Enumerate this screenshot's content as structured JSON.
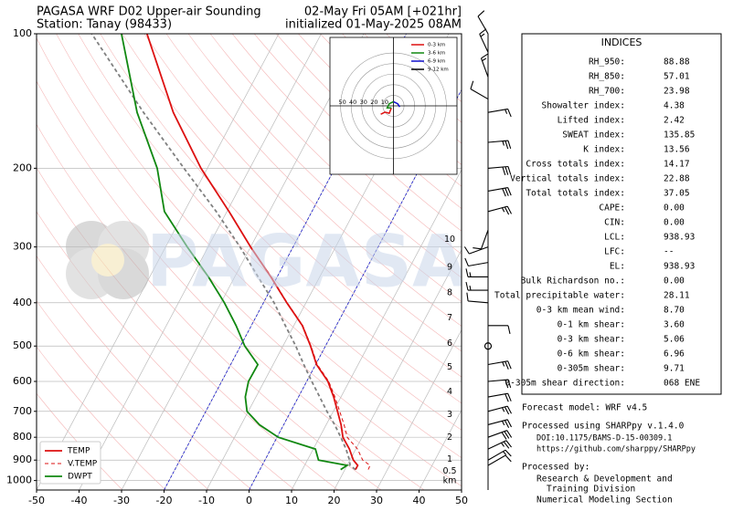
{
  "header": {
    "title": "PAGASA WRF D02 Upper-air Sounding",
    "station": "Station: Tanay (98433)",
    "valid": "02-May Fri 05AM [+021hr]",
    "init": "initialized 01-May-2025 08AM"
  },
  "chart_data": [
    {
      "type": "skewt",
      "pressure": [
        945,
        925,
        900,
        850,
        800,
        750,
        700,
        650,
        600,
        550,
        500,
        450,
        400,
        350,
        300,
        250,
        200,
        150,
        100
      ],
      "series": [
        {
          "name": "TEMP",
          "color": "#dd1111",
          "linestyle": "solid",
          "values": [
            22.5,
            22.5,
            20.8,
            18.5,
            15.5,
            13.5,
            11.0,
            8.3,
            5.0,
            0.2,
            -3.5,
            -8.0,
            -14.5,
            -21.5,
            -30.0,
            -39.5,
            -51.5,
            -65.0,
            -81.0
          ]
        },
        {
          "name": "V.TEMP",
          "color": "#dd1111",
          "linestyle": "dashed",
          "values": [
            25.5,
            25.4,
            23.0,
            20.4,
            16.5,
            14.2,
            11.5,
            8.6,
            5.2,
            0.4,
            -3.4,
            -7.9,
            -14.4,
            -21.4,
            -30.0,
            -39.5,
            -51.5,
            -65.0,
            -81.0
          ]
        },
        {
          "name": "DWPT",
          "color": "#118811",
          "linestyle": "solid",
          "values": [
            19.0,
            20.0,
            12.6,
            10.5,
            0.3,
            -5.7,
            -10.3,
            -12.5,
            -13.7,
            -13.6,
            -19.0,
            -23.6,
            -29.2,
            -36.2,
            -44.9,
            -54.7,
            -61.8,
            -73.5,
            -87.0
          ]
        }
      ],
      "parcel": {
        "color": "#808080",
        "values": [
          22.5,
          20.7,
          19.9,
          17.7,
          15.0,
          12.0,
          8.5,
          5.0,
          1.2,
          -2.8,
          -7.0,
          -12.0,
          -17.5,
          -24.5,
          -32.5,
          -42.5,
          -55.5,
          -72.0,
          -94.0
        ]
      },
      "xlim": [
        -50,
        50
      ],
      "xticks": [
        -50,
        -40,
        -30,
        -20,
        -10,
        0,
        10,
        20,
        30,
        40,
        50
      ],
      "ylim": [
        1050,
        100
      ],
      "yticks": [
        100,
        200,
        300,
        400,
        500,
        600,
        700,
        800,
        900,
        1000
      ],
      "log_y": true,
      "grid": true,
      "legend": "lower left",
      "isotherm_lines": [
        -20,
        0
      ],
      "height_km": {
        "values": [
          10,
          9,
          8,
          7,
          6,
          5,
          4,
          3,
          2,
          1,
          0.5
        ],
        "pressure": [
          289,
          333,
          380,
          433,
          494,
          558,
          634,
          713,
          802,
          898,
          954
        ],
        "unit": "km"
      },
      "wind": {
        "pressure": [
          100,
          110,
          125,
          140,
          150,
          175,
          200,
          225,
          250,
          275,
          300,
          325,
          350,
          375,
          400,
          450,
          500,
          550,
          600,
          650,
          700,
          750,
          800,
          850,
          900,
          925
        ],
        "direction": [
          330,
          335,
          340,
          300,
          80,
          85,
          85,
          80,
          75,
          200,
          250,
          260,
          270,
          270,
          275,
          90,
          0,
          80,
          85,
          80,
          75,
          75,
          70,
          65,
          60,
          60
        ],
        "speed": [
          10,
          15,
          15,
          10,
          15,
          25,
          30,
          30,
          25,
          10,
          10,
          10,
          15,
          15,
          10,
          10,
          0,
          25,
          20,
          20,
          25,
          25,
          30,
          25,
          15,
          10
        ]
      },
      "watermark": "PAGASA"
    },
    {
      "type": "hodograph",
      "xlim": [
        -60,
        60
      ],
      "ylim": [
        -65,
        65
      ],
      "ring_ticks": [
        10,
        20,
        30,
        40,
        50
      ],
      "series": [
        {
          "name": "0-3 km",
          "color": "#dd1111",
          "u": [
            -12,
            -8,
            -4,
            -2
          ],
          "v": [
            -8,
            -6,
            -7,
            -2
          ]
        },
        {
          "name": "3-6 km",
          "color": "#118811",
          "u": [
            -2,
            -6,
            -4,
            0
          ],
          "v": [
            -2,
            -2,
            2,
            4
          ]
        },
        {
          "name": "6-9 km",
          "color": "#1111cc",
          "u": [
            0,
            4,
            6
          ],
          "v": [
            4,
            2,
            -1
          ]
        },
        {
          "name": "9-12 km",
          "color": "#000000",
          "u": [],
          "v": []
        }
      ]
    }
  ],
  "indices": {
    "title": "INDICES",
    "rows": [
      [
        "RH_950:",
        "88.88"
      ],
      [
        "RH_850:",
        "57.01"
      ],
      [
        "RH_700:",
        "23.98"
      ],
      [
        "Showalter index:",
        "4.38"
      ],
      [
        "Lifted index:",
        "2.42"
      ],
      [
        "SWEAT index:",
        "135.85"
      ],
      [
        "K index:",
        "13.56"
      ],
      [
        "Cross totals index:",
        "14.17"
      ],
      [
        "Vertical totals index:",
        "22.88"
      ],
      [
        "Total totals index:",
        "37.05"
      ],
      [
        "CAPE:",
        "0.00"
      ],
      [
        "CIN:",
        "0.00"
      ],
      [
        "LCL:",
        "938.93"
      ],
      [
        "LFC:",
        "--"
      ],
      [
        "EL:",
        "938.93"
      ],
      [
        "Bulk Richardson no.:",
        "0.00"
      ],
      [
        "Total precipitable water:",
        "28.11"
      ],
      [
        "0-3 km mean wind:",
        "8.70"
      ],
      [
        "0-1 km shear:",
        "3.60"
      ],
      [
        "0-3 km shear:",
        "5.06"
      ],
      [
        "0-6 km shear:",
        "6.96"
      ],
      [
        "0-305m shear:",
        "9.71"
      ],
      [
        "0-305m shear direction:",
        "068 ENE"
      ]
    ]
  },
  "notes": {
    "forecast_model": "Forecast model: WRF v4.5",
    "processed_using": "Processed using SHARPpy v.1.4.0",
    "doi": "DOI:10.1175/BAMS-D-15-00309.1",
    "url": "https://github.com/sharppy/SHARPpy",
    "processed_by": "Processed by:",
    "org_1": "Research & Development and",
    "org_2": "Training Division",
    "org_3": "Numerical Modeling Section"
  }
}
